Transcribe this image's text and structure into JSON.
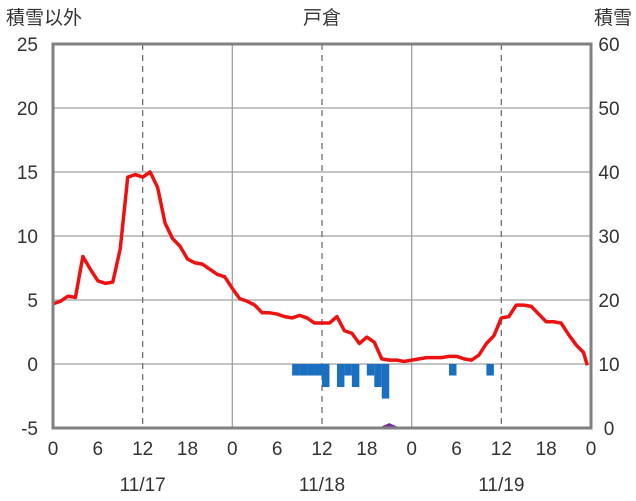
{
  "chart_data": {
    "type": "line",
    "title": "戸倉",
    "y_left_label": "積雪以外",
    "y_right_label": "積雪",
    "ylim_left": [
      -5,
      25
    ],
    "ylim_right": [
      0,
      60
    ],
    "y_left_ticks": [
      "25",
      "20",
      "15",
      "10",
      "5",
      "0",
      "-5"
    ],
    "y_right_ticks": [
      "60",
      "50",
      "40",
      "30",
      "20",
      "10",
      "0"
    ],
    "x_hour_ticks": [
      "0",
      "6",
      "12",
      "18",
      "0",
      "6",
      "12",
      "18",
      "0",
      "6",
      "12",
      "18",
      "0"
    ],
    "x_day_labels": [
      "11/17",
      "11/18",
      "11/19"
    ],
    "x_range_hours": [
      0,
      72
    ],
    "grid": true,
    "colors": {
      "temperature": "#ee1111",
      "precipitation": "#1a6fc0",
      "snow_depth": "#7030a0"
    },
    "temperature": {
      "x": [
        0,
        1,
        2,
        3,
        4,
        5,
        6,
        7,
        8,
        9,
        10,
        11,
        12,
        13,
        14,
        15,
        16,
        17,
        18,
        19,
        20,
        21,
        22,
        23,
        24,
        25,
        26,
        27,
        28,
        29,
        30,
        31,
        32,
        33,
        34,
        35,
        36,
        37,
        38,
        39,
        40,
        41,
        42,
        43,
        44,
        45,
        46,
        47,
        48,
        49,
        50,
        51,
        52,
        53,
        54,
        55,
        56,
        57,
        58,
        59,
        60,
        61,
        62,
        63,
        64,
        65,
        66,
        67,
        68,
        69,
        70,
        71
      ],
      "values": [
        4.7,
        4.9,
        5.3,
        5.2,
        8.4,
        7.4,
        6.5,
        6.3,
        6.4,
        9.0,
        14.6,
        14.8,
        14.6,
        15.0,
        13.8,
        11.0,
        9.8,
        9.2,
        8.2,
        7.9,
        7.8,
        7.4,
        7.0,
        6.8,
        5.9,
        5.1,
        4.9,
        4.6,
        4.0,
        4.0,
        3.9,
        3.7,
        3.6,
        3.8,
        3.6,
        3.2,
        3.2,
        3.2,
        3.7,
        2.6,
        2.4,
        1.6,
        2.1,
        1.7,
        0.4,
        0.3,
        0.3,
        0.2,
        0.3,
        0.4,
        0.5,
        0.5,
        0.5,
        0.6,
        0.6,
        0.4,
        0.3,
        0.7,
        1.6,
        2.2,
        3.6,
        3.7,
        4.6,
        4.6,
        4.5,
        3.9,
        3.3,
        3.3,
        3.2,
        2.3,
        1.5,
        0.9
      ],
      "end_value": -0.1
    },
    "precipitation": {
      "x": [
        32,
        33,
        34,
        35,
        36,
        38,
        39,
        40,
        42,
        43,
        44,
        53,
        58
      ],
      "values": [
        1,
        1,
        1,
        1,
        2,
        2,
        1,
        2,
        1,
        2,
        3,
        1,
        1
      ],
      "unit_height": 0.9
    },
    "snow_depth": {
      "x": [
        0,
        44,
        45,
        46,
        72
      ],
      "values": [
        0,
        0,
        0.5,
        0,
        0
      ]
    }
  }
}
